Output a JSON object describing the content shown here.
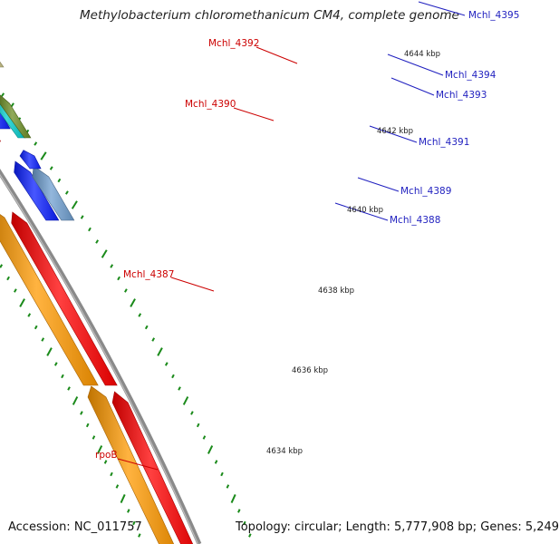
{
  "title": "Methylobacterium chloromethanicum CM4, complete genome",
  "accession": "Accession: NC_011757",
  "summary": "Topology: circular; Length: 5,777,908 bp; Genes: 5,249",
  "colors": {
    "backbone": "#8a8a8a",
    "tick": "#1a8a1a",
    "forward_label": "#1f1fbf",
    "reverse_label": "#cc0000",
    "gene_orange": "#ff9900",
    "gene_red": "#ff0000",
    "gene_blue": "#0a1fff",
    "gene_steel": "#6f9fd0",
    "gene_khaki": "#cdc68a",
    "gene_cyan": "#00cccc",
    "gene_olive": "#6b8e23",
    "gene_gray": "#777777"
  },
  "ticks": [
    {
      "label": "4644 kbp"
    },
    {
      "label": "4642 kbp"
    },
    {
      "label": "4640 kbp"
    },
    {
      "label": "4638 kbp"
    },
    {
      "label": "4636 kbp"
    },
    {
      "label": "4634 kbp"
    }
  ],
  "gene_labels": {
    "forward": [
      "Mchl_4395",
      "Mchl_4394",
      "Mchl_4393",
      "Mchl_4391",
      "Mchl_4389",
      "Mchl_4388"
    ],
    "reverse": [
      "Mchl_4392",
      "Mchl_4390",
      "Mchl_4387",
      "rpoB"
    ]
  }
}
